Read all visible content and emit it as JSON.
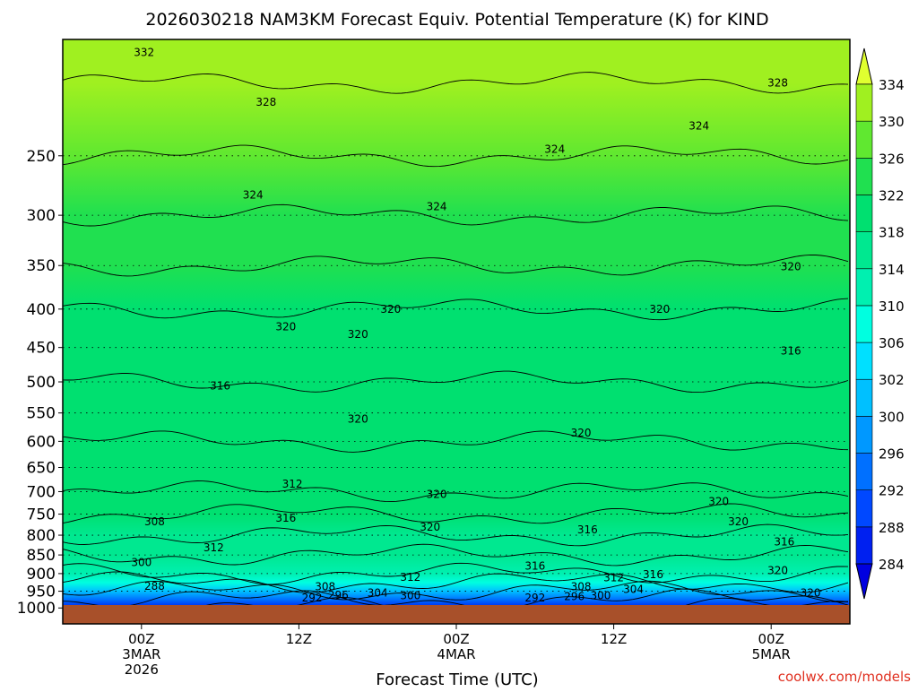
{
  "chart_data": {
    "type": "heatmap",
    "title": "2026030218 NAM3KM Forecast Equiv. Potential Temperature (K) for KIND",
    "xlabel": "Forecast Time (UTC)",
    "ylabel": "",
    "yaxis_scale": "log-pressure",
    "ylim": [
      1050,
      175
    ],
    "xlim": [
      -6,
      54
    ],
    "y_ticks": [
      250,
      300,
      350,
      400,
      450,
      500,
      550,
      600,
      650,
      700,
      750,
      800,
      850,
      900,
      950,
      1000
    ],
    "x_ticks": [
      {
        "hour": 0,
        "label_lines": [
          "00Z",
          "3MAR",
          "2026"
        ]
      },
      {
        "hour": 12,
        "label_lines": [
          "12Z"
        ]
      },
      {
        "hour": 24,
        "label_lines": [
          "00Z",
          "4MAR"
        ]
      },
      {
        "hour": 36,
        "label_lines": [
          "12Z"
        ]
      },
      {
        "hour": 48,
        "label_lines": [
          "00Z",
          "5MAR"
        ]
      }
    ],
    "colorbar": {
      "levels": [
        284,
        288,
        292,
        296,
        300,
        302,
        306,
        310,
        314,
        318,
        322,
        326,
        330,
        334
      ],
      "colors": [
        "#0000e0",
        "#0020f0",
        "#0048ff",
        "#0070ff",
        "#0098ff",
        "#00c0ff",
        "#00e0ff",
        "#00ffe0",
        "#00f0b0",
        "#00e890",
        "#00e070",
        "#20e050",
        "#60e830",
        "#a0f020",
        "#e0ff30"
      ]
    },
    "profile": [
      {
        "p": 1000,
        "theta": 286
      },
      {
        "p": 975,
        "theta": 292
      },
      {
        "p": 950,
        "theta": 300
      },
      {
        "p": 925,
        "theta": 306
      },
      {
        "p": 900,
        "theta": 310
      },
      {
        "p": 850,
        "theta": 314
      },
      {
        "p": 800,
        "theta": 316
      },
      {
        "p": 750,
        "theta": 318
      },
      {
        "p": 700,
        "theta": 318
      },
      {
        "p": 600,
        "theta": 319
      },
      {
        "p": 500,
        "theta": 319
      },
      {
        "p": 400,
        "theta": 321
      },
      {
        "p": 350,
        "theta": 322
      },
      {
        "p": 300,
        "theta": 324
      },
      {
        "p": 250,
        "theta": 326
      },
      {
        "p": 200,
        "theta": 330
      }
    ],
    "contour_labels": [
      {
        "text": "332",
        "hour": 0.2,
        "p": 182
      },
      {
        "text": "328",
        "hour": 9.5,
        "p": 212
      },
      {
        "text": "328",
        "hour": 48.5,
        "p": 200
      },
      {
        "text": "324",
        "hour": 42.5,
        "p": 228
      },
      {
        "text": "324",
        "hour": 31.5,
        "p": 245
      },
      {
        "text": "324",
        "hour": 8.5,
        "p": 282
      },
      {
        "text": "324",
        "hour": 22.5,
        "p": 292
      },
      {
        "text": "320",
        "hour": 49.5,
        "p": 351
      },
      {
        "text": "320",
        "hour": 39.5,
        "p": 400
      },
      {
        "text": "320",
        "hour": 19,
        "p": 400
      },
      {
        "text": "320",
        "hour": 11,
        "p": 422
      },
      {
        "text": "320",
        "hour": 16.5,
        "p": 432
      },
      {
        "text": "316",
        "hour": 49.5,
        "p": 455
      },
      {
        "text": "316",
        "hour": 6,
        "p": 506
      },
      {
        "text": "320",
        "hour": 16.5,
        "p": 560
      },
      {
        "text": "320",
        "hour": 33.5,
        "p": 585
      },
      {
        "text": "312",
        "hour": 11.5,
        "p": 684
      },
      {
        "text": "320",
        "hour": 22.5,
        "p": 706
      },
      {
        "text": "320",
        "hour": 44,
        "p": 722
      },
      {
        "text": "308",
        "hour": 1,
        "p": 768
      },
      {
        "text": "316",
        "hour": 11,
        "p": 759
      },
      {
        "text": "320",
        "hour": 45.5,
        "p": 768
      },
      {
        "text": "320",
        "hour": 22,
        "p": 780
      },
      {
        "text": "316",
        "hour": 34,
        "p": 787
      },
      {
        "text": "316",
        "hour": 49,
        "p": 816
      },
      {
        "text": "312",
        "hour": 5.5,
        "p": 831
      },
      {
        "text": "300",
        "hour": 0,
        "p": 870
      },
      {
        "text": "316",
        "hour": 30,
        "p": 880
      },
      {
        "text": "320",
        "hour": 48.5,
        "p": 892
      },
      {
        "text": "312",
        "hour": 20.5,
        "p": 910
      },
      {
        "text": "312",
        "hour": 36,
        "p": 912
      },
      {
        "text": "316",
        "hour": 39,
        "p": 903
      },
      {
        "text": "288",
        "hour": 1,
        "p": 936
      },
      {
        "text": "308",
        "hour": 14,
        "p": 937
      },
      {
        "text": "308",
        "hour": 33.5,
        "p": 937
      },
      {
        "text": "304",
        "hour": 37.5,
        "p": 945
      },
      {
        "text": "304",
        "hour": 18,
        "p": 955
      },
      {
        "text": "296",
        "hour": 15,
        "p": 962
      },
      {
        "text": "292",
        "hour": 13,
        "p": 970
      },
      {
        "text": "300",
        "hour": 20.5,
        "p": 963
      },
      {
        "text": "296",
        "hour": 33,
        "p": 965
      },
      {
        "text": "300",
        "hour": 35,
        "p": 963
      },
      {
        "text": "292",
        "hour": 30,
        "p": 970
      },
      {
        "text": "320",
        "hour": 51,
        "p": 955
      }
    ]
  },
  "footer": {
    "credit": "coolwx.com/models"
  },
  "colors": {
    "ground": "#a8502a",
    "credit": "#e03020",
    "background": "#ffffff"
  }
}
